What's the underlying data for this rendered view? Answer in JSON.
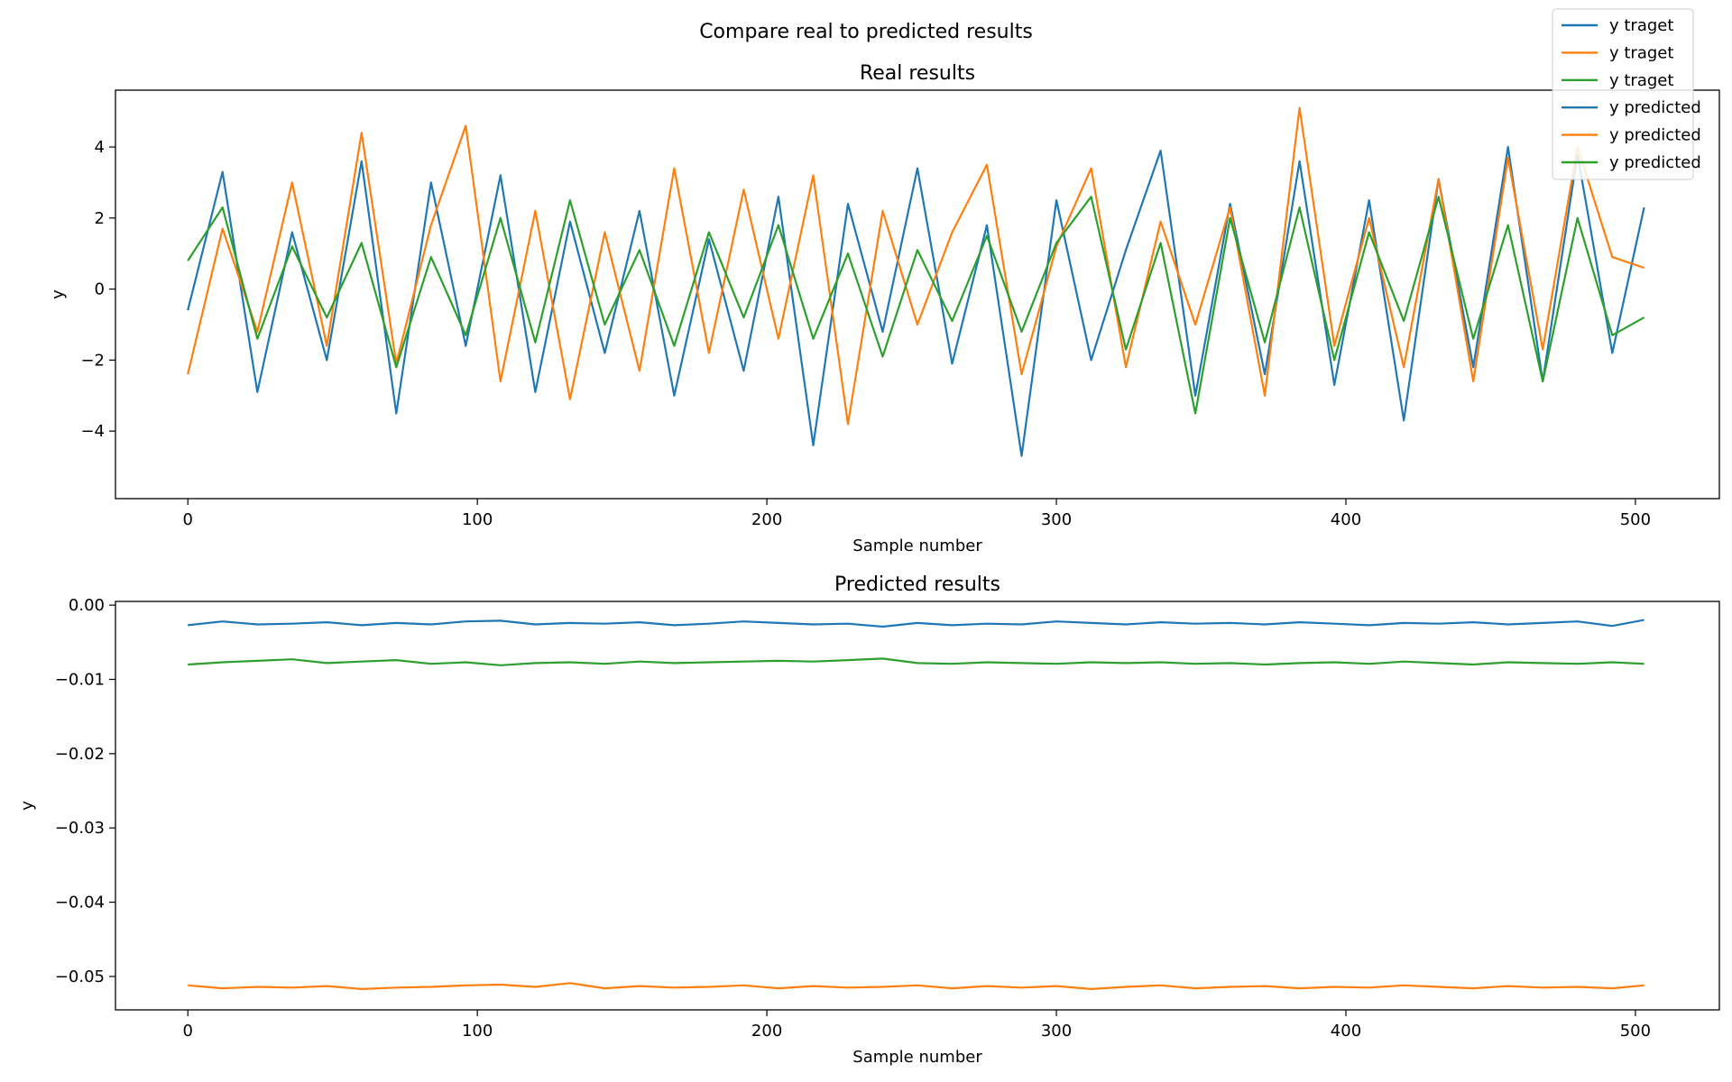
{
  "figure": {
    "suptitle": "Compare real to predicted results"
  },
  "legend": {
    "placement": "top-right",
    "entries": [
      {
        "label": "y traget",
        "color": "#1f77b4"
      },
      {
        "label": "y traget",
        "color": "#ff7f0e"
      },
      {
        "label": "y traget",
        "color": "#2ca02c"
      },
      {
        "label": "y predicted",
        "color": "#1f77b4"
      },
      {
        "label": "y predicted",
        "color": "#ff7f0e"
      },
      {
        "label": "y predicted",
        "color": "#2ca02c"
      }
    ]
  },
  "chart_data": [
    {
      "type": "line",
      "title": "Real results",
      "xlabel": "Sample number",
      "ylabel": "y",
      "xlim": [
        -25,
        529
      ],
      "ylim": [
        -5.9,
        5.6
      ],
      "xticks": [
        0,
        100,
        200,
        300,
        400,
        500
      ],
      "xtick_labels": [
        "0",
        "100",
        "200",
        "300",
        "400",
        "500"
      ],
      "yticks": [
        4,
        2,
        0,
        -2,
        -4
      ],
      "ytick_labels": [
        "4",
        "2",
        "0",
        "−2",
        "−4"
      ],
      "grid": false,
      "x": [
        0,
        12,
        24,
        36,
        48,
        60,
        72,
        84,
        96,
        108,
        120,
        132,
        144,
        156,
        168,
        180,
        192,
        204,
        216,
        228,
        240,
        252,
        264,
        276,
        288,
        300,
        312,
        324,
        336,
        348,
        360,
        372,
        384,
        396,
        408,
        420,
        432,
        444,
        456,
        468,
        480,
        492,
        503
      ],
      "series": [
        {
          "name": "y traget",
          "color": "#1f77b4",
          "values": [
            -0.6,
            3.3,
            -2.9,
            1.6,
            -2.0,
            3.6,
            -3.5,
            3.0,
            -1.6,
            3.2,
            -2.9,
            1.9,
            -1.8,
            2.2,
            -3.0,
            1.4,
            -2.3,
            2.6,
            -4.4,
            2.4,
            -1.2,
            3.4,
            -2.1,
            1.8,
            -4.7,
            2.5,
            -2.0,
            1.1,
            3.9,
            -3.0,
            2.4,
            -2.4,
            3.6,
            -2.7,
            2.5,
            -3.7,
            3.1,
            -2.2,
            4.0,
            -2.6,
            3.8,
            -1.8,
            2.3
          ]
        },
        {
          "name": "y traget",
          "color": "#ff7f0e",
          "values": [
            -2.4,
            1.7,
            -1.2,
            3.0,
            -1.6,
            4.4,
            -2.1,
            1.8,
            4.6,
            -2.6,
            2.2,
            -3.1,
            1.6,
            -2.3,
            3.4,
            -1.8,
            2.8,
            -1.4,
            3.2,
            -3.8,
            2.2,
            -1.0,
            1.6,
            3.5,
            -2.4,
            1.2,
            3.4,
            -2.2,
            1.9,
            -1.0,
            2.3,
            -3.0,
            5.1,
            -1.6,
            2.0,
            -2.2,
            3.1,
            -2.6,
            3.7,
            -1.7,
            4.0,
            0.9,
            0.6
          ]
        },
        {
          "name": "y traget",
          "color": "#2ca02c",
          "values": [
            0.8,
            2.3,
            -1.4,
            1.2,
            -0.8,
            1.3,
            -2.2,
            0.9,
            -1.3,
            2.0,
            -1.5,
            2.5,
            -1.0,
            1.1,
            -1.6,
            1.6,
            -0.8,
            1.8,
            -1.4,
            1.0,
            -1.9,
            1.1,
            -0.9,
            1.5,
            -1.2,
            1.3,
            2.6,
            -1.7,
            1.3,
            -3.5,
            2.0,
            -1.5,
            2.3,
            -2.0,
            1.6,
            -0.9,
            2.6,
            -1.4,
            1.8,
            -2.6,
            2.0,
            -1.3,
            -0.8
          ]
        }
      ]
    },
    {
      "type": "line",
      "title": "Predicted results",
      "xlabel": "Sample number",
      "ylabel": "y",
      "xlim": [
        -25,
        529
      ],
      "ylim": [
        -0.0545,
        0.0005
      ],
      "xticks": [
        0,
        100,
        200,
        300,
        400,
        500
      ],
      "xtick_labels": [
        "0",
        "100",
        "200",
        "300",
        "400",
        "500"
      ],
      "yticks": [
        0.0,
        -0.01,
        -0.02,
        -0.03,
        -0.04,
        -0.05
      ],
      "ytick_labels": [
        "0.00",
        "−0.01",
        "−0.02",
        "−0.03",
        "−0.04",
        "−0.05"
      ],
      "grid": false,
      "x": [
        0,
        12,
        24,
        36,
        48,
        60,
        72,
        84,
        96,
        108,
        120,
        132,
        144,
        156,
        168,
        180,
        192,
        204,
        216,
        228,
        240,
        252,
        264,
        276,
        288,
        300,
        312,
        324,
        336,
        348,
        360,
        372,
        384,
        396,
        408,
        420,
        432,
        444,
        456,
        468,
        480,
        492,
        503
      ],
      "series": [
        {
          "name": "y predicted",
          "color": "#1f77b4",
          "values": [
            -0.0027,
            -0.0022,
            -0.0026,
            -0.0025,
            -0.0023,
            -0.0027,
            -0.0024,
            -0.0026,
            -0.0022,
            -0.0021,
            -0.0026,
            -0.0024,
            -0.0025,
            -0.0023,
            -0.0027,
            -0.0025,
            -0.0022,
            -0.0024,
            -0.0026,
            -0.0025,
            -0.0029,
            -0.0024,
            -0.0027,
            -0.0025,
            -0.0026,
            -0.0022,
            -0.0024,
            -0.0026,
            -0.0023,
            -0.0025,
            -0.0024,
            -0.0026,
            -0.0023,
            -0.0025,
            -0.0027,
            -0.0024,
            -0.0025,
            -0.0023,
            -0.0026,
            -0.0024,
            -0.0022,
            -0.0028,
            -0.002
          ]
        },
        {
          "name": "y predicted",
          "color": "#ff7f0e",
          "values": [
            -0.0512,
            -0.0516,
            -0.0514,
            -0.0515,
            -0.0513,
            -0.0517,
            -0.0515,
            -0.0514,
            -0.0512,
            -0.0511,
            -0.0514,
            -0.0509,
            -0.0516,
            -0.0513,
            -0.0515,
            -0.0514,
            -0.0512,
            -0.0516,
            -0.0513,
            -0.0515,
            -0.0514,
            -0.0512,
            -0.0516,
            -0.0513,
            -0.0515,
            -0.0513,
            -0.0517,
            -0.0514,
            -0.0512,
            -0.0516,
            -0.0514,
            -0.0513,
            -0.0516,
            -0.0514,
            -0.0515,
            -0.0512,
            -0.0514,
            -0.0516,
            -0.0513,
            -0.0515,
            -0.0514,
            -0.0516,
            -0.0512
          ]
        },
        {
          "name": "y predicted",
          "color": "#2ca02c",
          "values": [
            -0.008,
            -0.0077,
            -0.0075,
            -0.0073,
            -0.0078,
            -0.0076,
            -0.0074,
            -0.0079,
            -0.0077,
            -0.0081,
            -0.0078,
            -0.0077,
            -0.0079,
            -0.0076,
            -0.0078,
            -0.0077,
            -0.0076,
            -0.0075,
            -0.0076,
            -0.0074,
            -0.0072,
            -0.0078,
            -0.0079,
            -0.0077,
            -0.0078,
            -0.0079,
            -0.0077,
            -0.0078,
            -0.0077,
            -0.0079,
            -0.0078,
            -0.008,
            -0.0078,
            -0.0077,
            -0.0079,
            -0.0076,
            -0.0078,
            -0.008,
            -0.0077,
            -0.0078,
            -0.0079,
            -0.0077,
            -0.0079
          ]
        }
      ]
    }
  ]
}
